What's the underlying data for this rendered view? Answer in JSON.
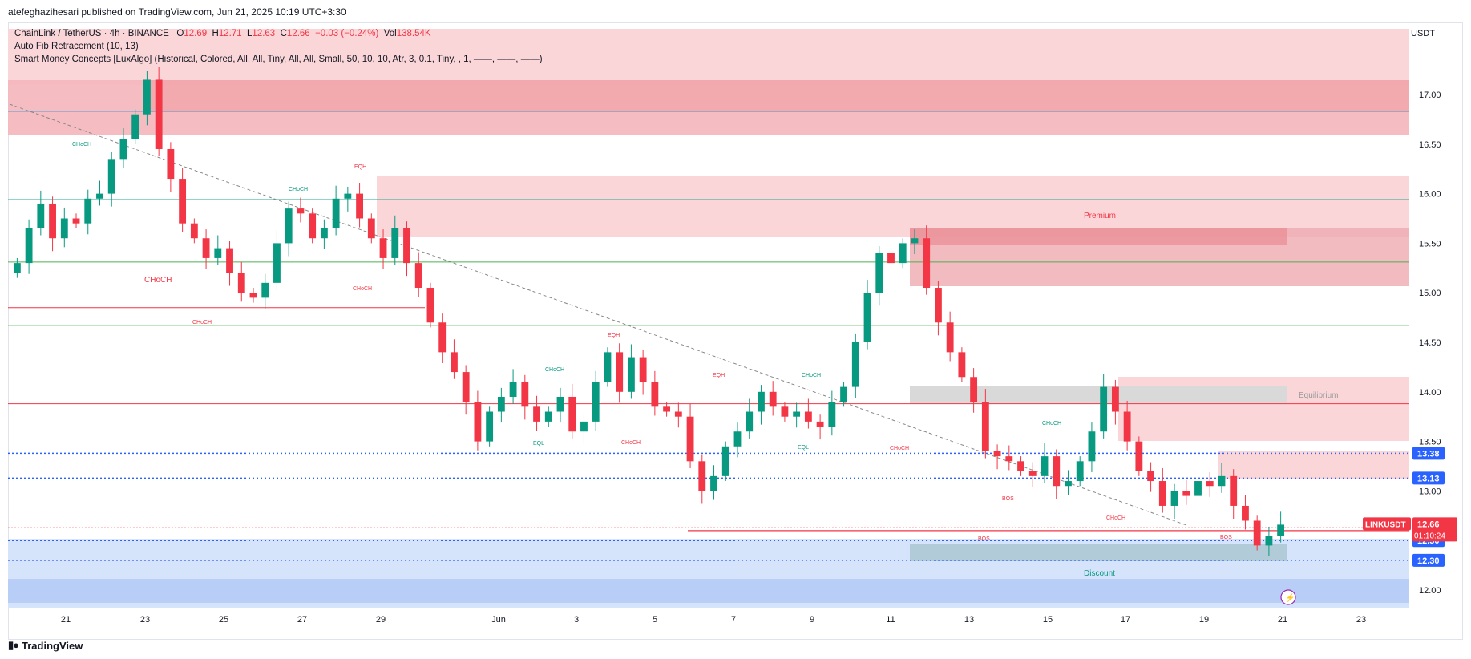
{
  "header": {
    "published": "atefeghazihesari published on TradingView.com, Jun 21, 2025 10:19 UTC+3:30"
  },
  "legend": {
    "symbol": "ChainLink / TetherUS · 4h · BINANCE",
    "open_k": "O",
    "open_v": "12.69",
    "high_k": "H",
    "high_v": "12.71",
    "low_k": "L",
    "low_v": "12.63",
    "close_k": "C",
    "close_v": "12.66",
    "change": "−0.03 (−0.24%)",
    "vol_k": "Vol",
    "vol_v": "138.54K",
    "indicator1": "Auto Fib Retracement (10, 13)",
    "indicator2": "Smart Money Concepts [LuxAlgo] (Historical, Colored, All, All, Tiny, All, All, Small, 50, 10, 10, Atr, 3, 0.1, Tiny, , 1, ——, ——, ——)"
  },
  "axis": {
    "unit": "USDT",
    "y_ticks": [
      "17.00",
      "16.50",
      "16.00",
      "15.50",
      "15.00",
      "14.50",
      "14.00",
      "13.50",
      "13.00",
      "12.00"
    ],
    "x_ticks": [
      "21",
      "23",
      "25",
      "27",
      "29",
      "Jun",
      "3",
      "5",
      "7",
      "9",
      "11",
      "13",
      "15",
      "17",
      "19",
      "21",
      "23"
    ]
  },
  "price_tags": {
    "t1338": "13.38",
    "t1313": "13.13",
    "symbol_tag": "LINKUSDT",
    "last": "12.66",
    "countdown": "01:10:24",
    "t1250": "12.50",
    "t1230": "12.30"
  },
  "annotations": {
    "premium": "Premium",
    "equilibrium": "Equilibrium",
    "discount": "Discount",
    "choch": "CHoCH",
    "eqh": "EQH",
    "eql": "EQL",
    "bos": "BOS"
  },
  "footer": {
    "brand": "TradingView"
  },
  "colors": {
    "up": "#089981",
    "down": "#f23645",
    "premium": "#f7c4c8",
    "discount": "#c4d7f7",
    "equilibrium": "#d6d6d6",
    "bos": "#f23645",
    "blue_dot": "#2962ff"
  },
  "chart_data": {
    "type": "candlestick",
    "title": "ChainLink / TetherUS · 4h · BINANCE",
    "xlabel": "",
    "ylabel": "USDT",
    "ylim": [
      11.8,
      17.5
    ],
    "x_labels": [
      "21",
      "23",
      "25",
      "27",
      "29",
      "Jun",
      "3",
      "5",
      "7",
      "9",
      "11",
      "13",
      "15",
      "17",
      "19",
      "21",
      "23"
    ],
    "last_price": 12.66,
    "levels": [
      13.38,
      13.13,
      12.5,
      12.3
    ],
    "zones": [
      {
        "name": "Premium",
        "from": 15.6,
        "to": 16.2
      },
      {
        "name": "Equilibrium",
        "from": 13.9,
        "to": 14.05
      },
      {
        "name": "Discount",
        "from": 12.2,
        "to": 12.5
      }
    ],
    "closes": [
      15.3,
      15.65,
      15.9,
      15.55,
      15.75,
      15.7,
      15.95,
      16.0,
      16.35,
      16.55,
      16.8,
      17.15,
      16.45,
      16.15,
      15.7,
      15.55,
      15.35,
      15.45,
      15.2,
      15.0,
      14.95,
      15.1,
      15.5,
      15.85,
      15.8,
      15.55,
      15.65,
      15.95,
      16.0,
      15.75,
      15.55,
      15.35,
      15.65,
      15.3,
      15.05,
      14.7,
      14.4,
      14.2,
      13.9,
      13.5,
      13.8,
      13.95,
      14.1,
      13.85,
      13.7,
      13.8,
      13.95,
      13.6,
      13.7,
      14.1,
      14.4,
      14.0,
      14.35,
      14.1,
      13.85,
      13.8,
      13.75,
      13.3,
      13.0,
      13.15,
      13.45,
      13.6,
      13.8,
      14.0,
      13.85,
      13.75,
      13.8,
      13.7,
      13.65,
      13.9,
      14.05,
      14.5,
      15.0,
      15.4,
      15.3,
      15.5,
      15.55,
      15.05,
      14.7,
      14.4,
      14.15,
      13.9,
      13.4,
      13.35,
      13.3,
      13.2,
      13.15,
      13.35,
      13.05,
      13.1,
      13.3,
      13.6,
      14.05,
      13.8,
      13.5,
      13.2,
      13.1,
      12.85,
      13.0,
      12.95,
      13.1,
      13.05,
      13.15,
      12.85,
      12.7,
      12.45,
      12.55,
      12.66
    ],
    "candles_note": "Approximate 4h OHLC path read from chart"
  }
}
